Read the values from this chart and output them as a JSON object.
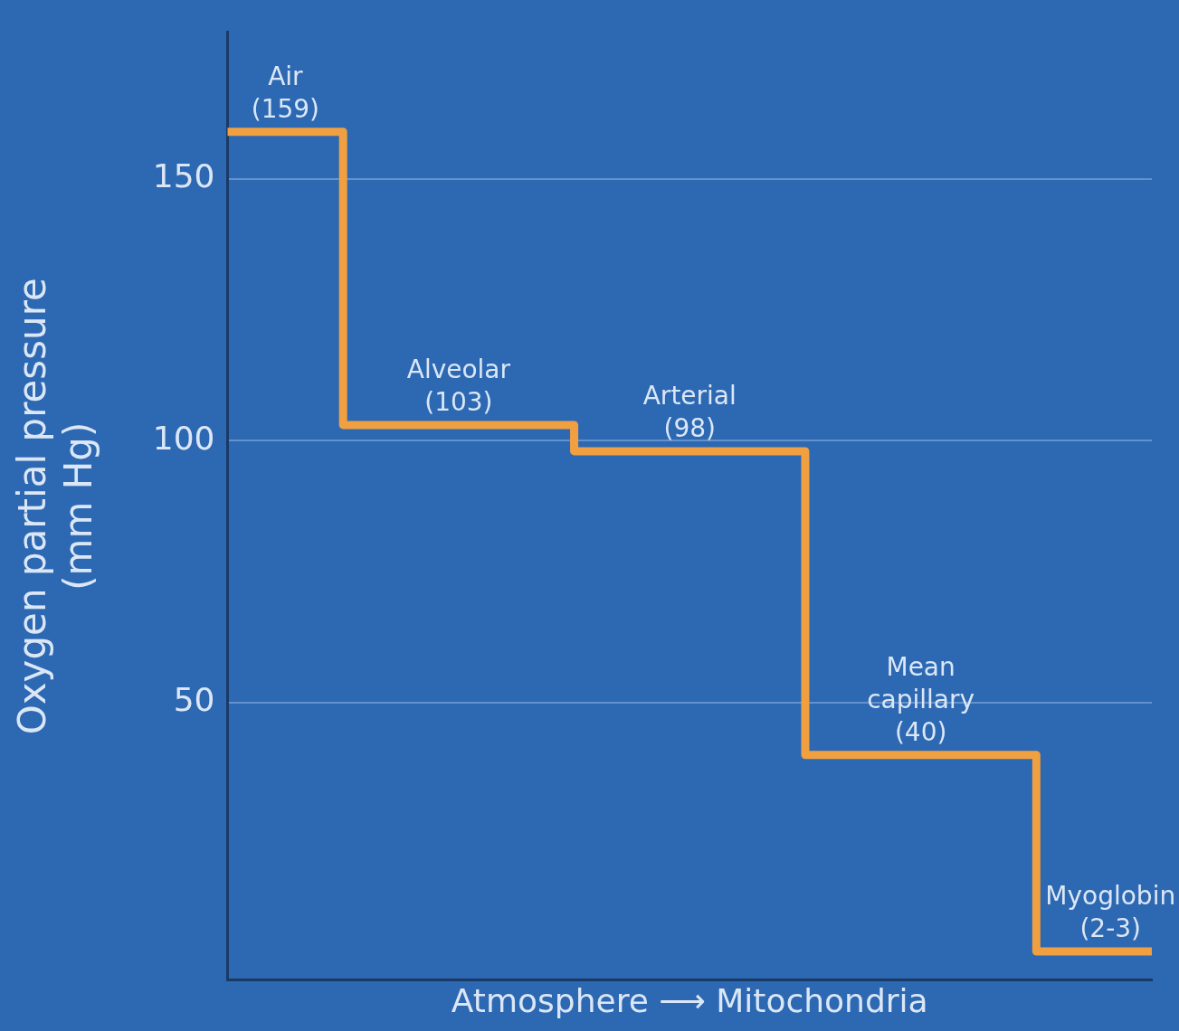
{
  "chart_data": {
    "type": "step",
    "ylabel": "Oxygen partial pressure\n(mm Hg)",
    "xlabel": "Atmosphere ⟶ Mitochondria",
    "categories": [
      null,
      null,
      null,
      null,
      null
    ],
    "values": [
      159,
      103,
      98,
      40,
      2.5
    ],
    "value_labels": [
      "Air\n(159)",
      "Alveolar\n(103)",
      "Arterial\n(98)",
      "Mean\ncapillary\n(40)",
      "Myoglobin\n(2-3)"
    ],
    "color": "#f0a040",
    "marker": "none",
    "ylim": [
      -3,
      178
    ],
    "yticks": [
      50,
      100,
      150
    ],
    "grid": "y"
  }
}
